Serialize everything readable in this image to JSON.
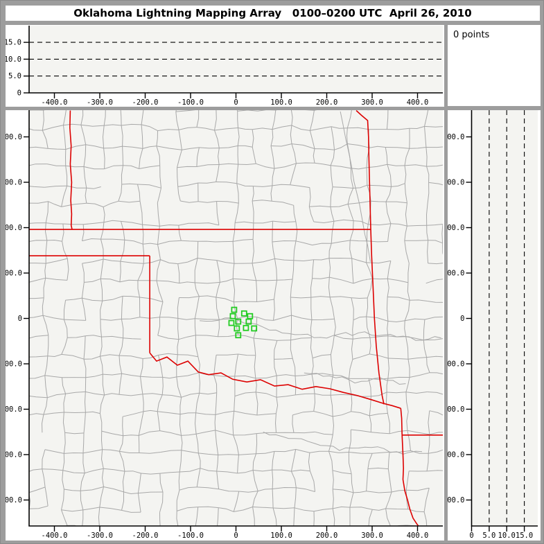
{
  "title": "Oklahoma Lightning Mapping Array   0100–0200 UTC  April 26, 2010",
  "points_label": "0 points",
  "colors": {
    "frame_gray": "#9d9d9d",
    "plot_background": "#f4f4f1",
    "margin_white": "#ffffff",
    "axis_black": "#000000",
    "county_gray": "#a8a8a8",
    "state_border_red": "#dd0000",
    "station_green": "#22cc22",
    "text_black": "#000000"
  },
  "distance_ticks": [
    {
      "label": "-400.0",
      "km": -400
    },
    {
      "label": "-300.0",
      "km": -300
    },
    {
      "label": "-200.0",
      "km": -200
    },
    {
      "label": "-100.0",
      "km": -100
    },
    {
      "label": "0",
      "km": 0
    },
    {
      "label": "100.0",
      "km": 100
    },
    {
      "label": "200.0",
      "km": 200
    },
    {
      "label": "300.0",
      "km": 300
    },
    {
      "label": "400.0",
      "km": 400
    }
  ],
  "altitude_ticks_top_panel": [
    {
      "label": "15.0",
      "km": 15
    },
    {
      "label": "10.0",
      "km": 10
    },
    {
      "label": "5.0",
      "km": 5
    },
    {
      "label": "0",
      "km": 0
    }
  ],
  "altitude_ticks_right_panel": [
    {
      "label": "0",
      "km": 0
    },
    {
      "label": "5.0",
      "km": 5
    },
    {
      "label": "10.0",
      "km": 10
    },
    {
      "label": "15.0",
      "km": 15
    }
  ],
  "chart_data": {
    "type": "scatter",
    "title": "Oklahoma Lightning Mapping Array   0100–0200 UTC  April 26, 2010",
    "points_count": 0,
    "lightning_points": [],
    "legend_text": "0 points",
    "map_x_range_km": [
      -457,
      456
    ],
    "map_y_range_km": [
      -458,
      458
    ],
    "altitude_range_km": [
      0,
      20
    ],
    "altitude_gridlines_km": [
      5,
      10,
      15
    ],
    "distance_tick_values_km": [
      -400,
      -300,
      -200,
      -100,
      0,
      100,
      200,
      300,
      400
    ],
    "grid": "dashed altitude gridlines only",
    "station_markers_km": [
      [
        -4,
        19
      ],
      [
        -7,
        5
      ],
      [
        18,
        11
      ],
      [
        31,
        5
      ],
      [
        -10,
        -10
      ],
      [
        5,
        -7
      ],
      [
        28,
        -7
      ],
      [
        2,
        -22
      ],
      [
        22,
        -21
      ],
      [
        40,
        -22
      ],
      [
        5,
        -37
      ]
    ],
    "state_borders_km": [
      [
        [
          -365,
          458
        ],
        [
          -366,
          420
        ],
        [
          -363,
          380
        ],
        [
          -365,
          340
        ],
        [
          -362,
          300
        ],
        [
          -364,
          260
        ],
        [
          -362,
          230
        ],
        [
          -363,
          205
        ],
        [
          -361,
          196
        ]
      ],
      [
        [
          -457,
          196
        ],
        [
          297,
          196
        ]
      ],
      [
        [
          -457,
          138
        ],
        [
          -190,
          138
        ]
      ],
      [
        [
          -190,
          138
        ],
        [
          -190,
          -76
        ]
      ],
      [
        [
          -190,
          -76
        ],
        [
          -175,
          -94
        ],
        [
          -152,
          -85
        ],
        [
          -129,
          -103
        ],
        [
          -106,
          -94
        ],
        [
          -83,
          -118
        ],
        [
          -60,
          -124
        ],
        [
          -33,
          -120
        ],
        [
          -7,
          -134
        ],
        [
          24,
          -140
        ],
        [
          54,
          -135
        ],
        [
          85,
          -149
        ],
        [
          115,
          -146
        ],
        [
          146,
          -156
        ],
        [
          176,
          -150
        ],
        [
          207,
          -155
        ],
        [
          237,
          -163
        ],
        [
          268,
          -170
        ],
        [
          298,
          -179
        ],
        [
          324,
          -187
        ],
        [
          344,
          -192
        ],
        [
          363,
          -198
        ]
      ],
      [
        [
          265,
          458
        ],
        [
          276,
          448
        ],
        [
          290,
          436
        ],
        [
          292,
          400
        ],
        [
          293,
          350
        ],
        [
          297,
          196
        ],
        [
          299,
          138
        ],
        [
          302,
          70
        ],
        [
          305,
          0
        ],
        [
          309,
          -60
        ],
        [
          315,
          -120
        ],
        [
          322,
          -170
        ],
        [
          326,
          -189
        ]
      ],
      [
        [
          363,
          -198
        ],
        [
          365,
          -220
        ],
        [
          366,
          -257
        ]
      ],
      [
        [
          366,
          -257
        ],
        [
          457,
          -257
        ]
      ],
      [
        [
          366,
          -257
        ],
        [
          368,
          -300
        ],
        [
          369,
          -330
        ],
        [
          368,
          -355
        ],
        [
          372,
          -380
        ],
        [
          378,
          -400
        ],
        [
          383,
          -420
        ],
        [
          390,
          -440
        ],
        [
          398,
          -452
        ],
        [
          403,
          -459
        ]
      ]
    ]
  }
}
